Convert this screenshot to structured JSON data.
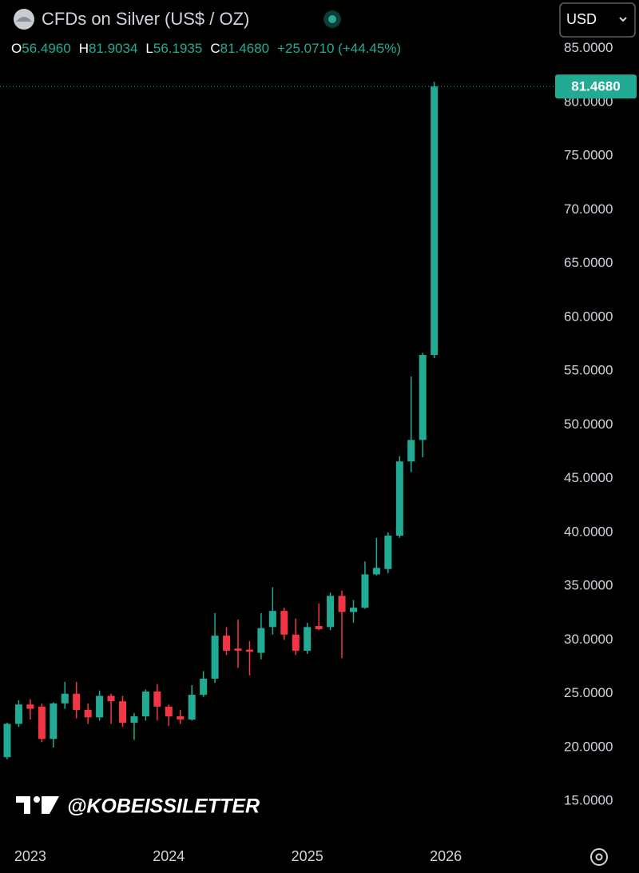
{
  "chart_data": {
    "type": "candlestick",
    "title": "CFDs on Silver (US$ / OZ)",
    "currency": "USD",
    "watermark": "@KOBEISSILETTER",
    "up_color": "#22ab94",
    "down_color": "#f23645",
    "ohlc_labels": [
      {
        "key": "O",
        "value": "56.4960"
      },
      {
        "key": "H",
        "value": "81.9034"
      },
      {
        "key": "L",
        "value": "56.1935"
      },
      {
        "key": "C",
        "value": "81.4680"
      }
    ],
    "change_label": "+25.0710 (+44.45%)",
    "last_price": {
      "value": 81.468,
      "label": "81.4680"
    },
    "categories": [
      null,
      null,
      "2023",
      null,
      null,
      null,
      null,
      null,
      null,
      null,
      null,
      null,
      null,
      null,
      "2024",
      null,
      null,
      null,
      null,
      null,
      null,
      null,
      null,
      null,
      null,
      null,
      "2025",
      null,
      null,
      null,
      null,
      null,
      null,
      null,
      null,
      null,
      null,
      null,
      "2026"
    ],
    "open": [
      19.1,
      22.2,
      24.0,
      23.8,
      20.8,
      24.1,
      25.0,
      23.5,
      22.8,
      24.8,
      24.3,
      22.3,
      22.9,
      25.2,
      23.8,
      22.9,
      22.6,
      24.9,
      26.4,
      30.4,
      29.2,
      29.1,
      28.8,
      31.2,
      32.7,
      30.5,
      29.0,
      31.3,
      31.2,
      34.1,
      32.6,
      33.0,
      36.1,
      36.6,
      39.7,
      46.6,
      48.6,
      56.496,
      null
    ],
    "high": [
      22.3,
      24.4,
      24.5,
      24.1,
      24.2,
      26.1,
      26.1,
      24.1,
      25.3,
      25.0,
      24.8,
      23.2,
      25.4,
      25.9,
      24.0,
      23.5,
      25.8,
      27.1,
      32.5,
      31.2,
      31.9,
      29.9,
      32.5,
      34.9,
      33.0,
      32.0,
      31.6,
      33.4,
      34.4,
      34.6,
      33.7,
      37.3,
      39.5,
      40.0,
      47.1,
      54.5,
      56.7,
      81.9034,
      null
    ],
    "low": [
      18.9,
      21.9,
      22.6,
      20.5,
      20.0,
      23.6,
      22.7,
      22.2,
      22.5,
      22.2,
      21.9,
      20.7,
      22.5,
      22.5,
      22.0,
      22.2,
      22.5,
      24.7,
      26.0,
      28.6,
      27.4,
      26.7,
      28.2,
      30.5,
      30.0,
      28.6,
      28.7,
      30.9,
      30.9,
      28.3,
      31.6,
      32.9,
      36.0,
      36.2,
      39.5,
      45.6,
      47.0,
      56.1935,
      null
    ],
    "close": [
      22.2,
      24.0,
      23.6,
      20.8,
      24.1,
      25.0,
      23.5,
      22.8,
      24.8,
      24.3,
      22.3,
      22.9,
      25.2,
      23.8,
      22.9,
      22.6,
      24.9,
      26.4,
      30.4,
      29.0,
      29.0,
      28.9,
      31.1,
      32.7,
      30.5,
      29.0,
      31.2,
      31.0,
      34.1,
      32.6,
      33.0,
      36.1,
      36.7,
      39.7,
      46.6,
      48.6,
      56.5,
      81.468,
      null
    ],
    "ylim": [
      11.45,
      86.54
    ],
    "yticks": [
      {
        "value": 15,
        "label": "15.0000"
      },
      {
        "value": 20,
        "label": "20.0000"
      },
      {
        "value": 25,
        "label": "25.0000"
      },
      {
        "value": 30,
        "label": "30.0000"
      },
      {
        "value": 35,
        "label": "35.0000"
      },
      {
        "value": 40,
        "label": "40.0000"
      },
      {
        "value": 45,
        "label": "45.0000"
      },
      {
        "value": 50,
        "label": "50.0000"
      },
      {
        "value": 55,
        "label": "55.0000"
      },
      {
        "value": 60,
        "label": "60.0000"
      },
      {
        "value": 65,
        "label": "65.0000"
      },
      {
        "value": 70,
        "label": "70.0000"
      },
      {
        "value": 75,
        "label": "75.0000"
      },
      {
        "value": 80,
        "label": "80.0000"
      },
      {
        "value": 85,
        "label": "85.0000"
      }
    ],
    "grid": false
  }
}
